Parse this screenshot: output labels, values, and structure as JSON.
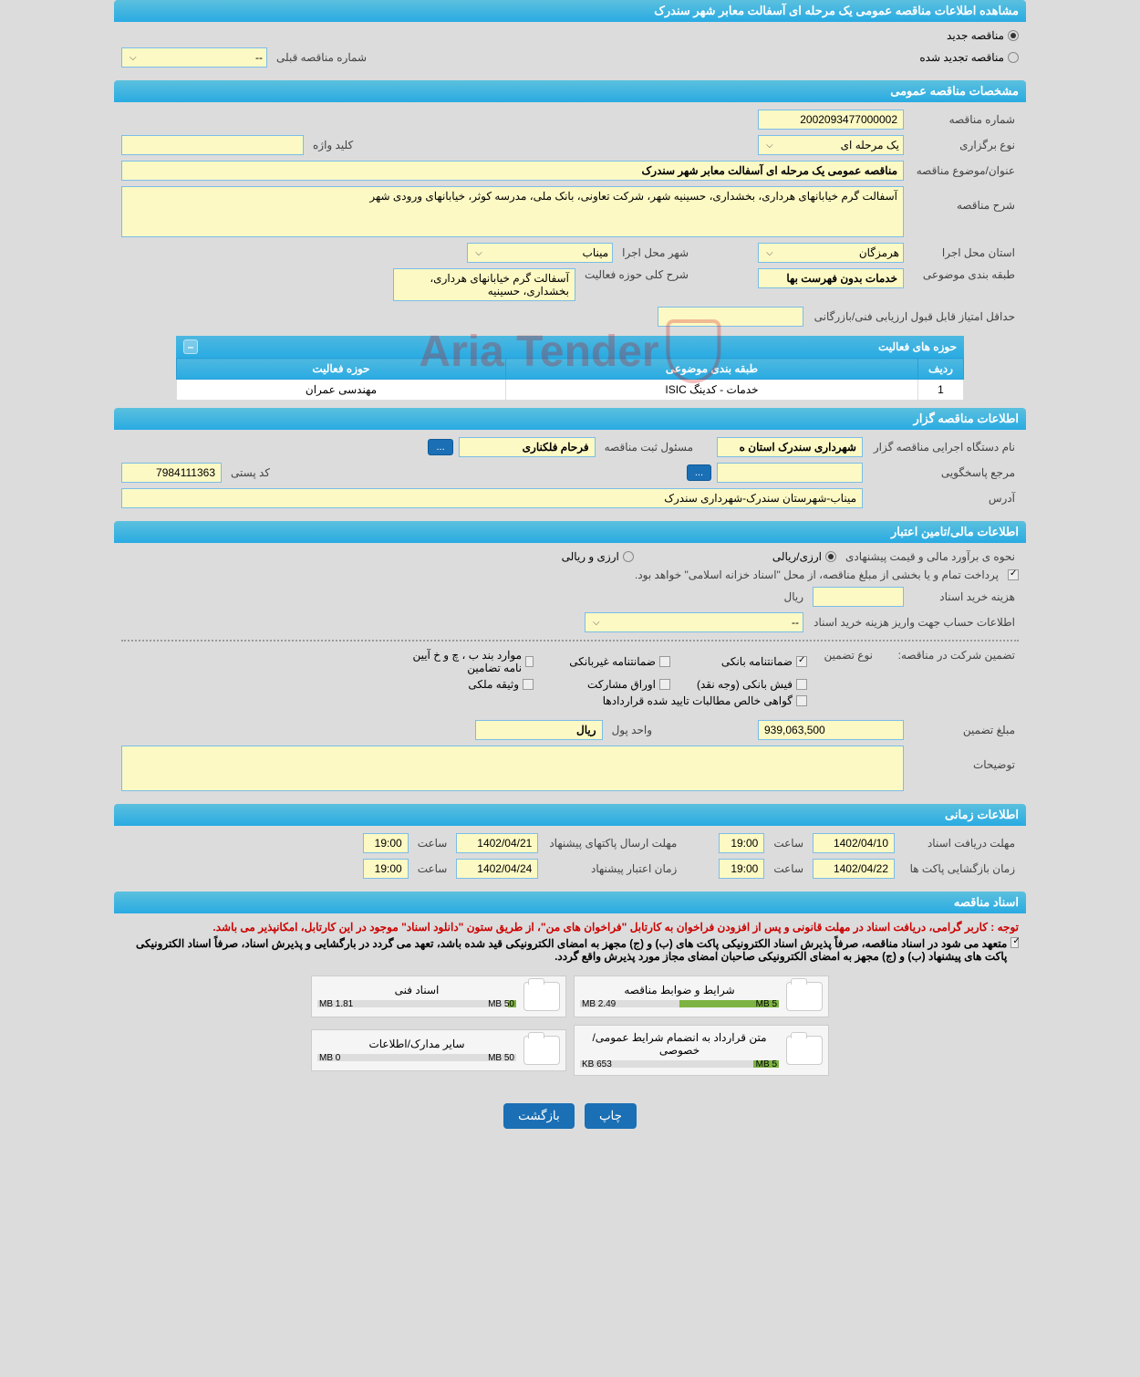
{
  "page_title": "مشاهده اطلاعات مناقصه عمومی یک مرحله ای آسفالت معابر شهر سندرک",
  "tender_status": {
    "new_label": "مناقصه جدید",
    "renewed_label": "مناقصه تجدید شده",
    "prev_number_label": "شماره مناقصه قبلی",
    "prev_number_value": "--"
  },
  "sections": {
    "general": "مشخصات مناقصه عمومی",
    "organizer": "اطلاعات مناقصه گزار",
    "financial": "اطلاعات مالی/تامین اعتبار",
    "timing": "اطلاعات زمانی",
    "documents": "اسناد مناقصه"
  },
  "general": {
    "tender_number_label": "شماره مناقصه",
    "tender_number": "2002093477000002",
    "keyword_label": "کلید واژه",
    "keyword": "",
    "type_label": "نوع برگزاری",
    "type": "یک مرحله ای",
    "subject_label": "عنوان/موضوع مناقصه",
    "subject": "مناقصه عمومی یک مرحله ای آسفالت معابر شهر سندرک",
    "description_label": "شرح مناقصه",
    "description": "آسفالت گرم خیابانهای هرداری، بخشداری، حسینیه شهر، شرکت تعاونی، بانک ملی، مدرسه کوثر، خیابانهای ورودی شهر",
    "province_label": "استان محل اجرا",
    "province": "هرمزگان",
    "city_label": "شهر محل اجرا",
    "city": "میناب",
    "category_label": "طبقه بندی موضوعی",
    "category": "خدمات بدون فهرست بها",
    "activity_label": "شرح کلی حوزه فعالیت",
    "activity": "آسفالت گرم خیابانهای هرداری، بخشداری، حسینیه",
    "min_score_label": "حداقل امتیاز قابل قبول ارزیابی فنی/بازرگانی",
    "min_score": ""
  },
  "activity_table": {
    "title": "حوزه های فعالیت",
    "headers": [
      "ردیف",
      "طبقه بندی موضوعی",
      "حوزه فعالیت"
    ],
    "rows": [
      [
        "1",
        "خدمات - کدینگ ISIC",
        "مهندسی عمران"
      ]
    ]
  },
  "organizer": {
    "name_label": "نام دستگاه اجرایی مناقصه گزار",
    "name": "شهرداری سندرک استان ه",
    "responsible_label": "مسئول ثبت مناقصه",
    "responsible": "فرحام فلکناری",
    "more_btn": "...",
    "contact_label": "مرجع پاسخگویی",
    "contact": "",
    "contact_btn": "...",
    "postal_label": "کد پستی",
    "postal": "7984111363",
    "address_label": "آدرس",
    "address": "میناب-شهرستان سندرک-شهرداری سندرک"
  },
  "financial": {
    "method_label": "نحوه ی برآورد مالی و قیمت پیشنهادی",
    "currency_rial": "ارزی/ریالی",
    "currency_both": "ارزی و ریالی",
    "payment_note": "پرداخت تمام و یا بخشی از مبلغ مناقصه، از محل \"اسناد خزانه اسلامی\" خواهد بود.",
    "doc_cost_label": "هزینه خرید اسناد",
    "doc_cost": "",
    "doc_cost_unit": "ریال",
    "account_label": "اطلاعات حساب جهت واریز هزینه خرید اسناد",
    "account": "--"
  },
  "guarantee": {
    "participate_label": "تضمین شرکت در مناقصه:",
    "type_label": "نوع تضمین",
    "types": {
      "bank": "ضمانتنامه بانکی",
      "nonbank": "ضمانتنامه غیربانکی",
      "cases": "موارد بند ب ، چ و خ آیین نامه تضامین",
      "cash": "فیش بانکی (وجه نقد)",
      "securities": "اوراق مشارکت",
      "property": "وثیقه ملکی",
      "cert": "گواهی خالص مطالبات تایید شده قراردادها"
    },
    "amount_label": "مبلغ تضمین",
    "amount": "939,063,500",
    "unit_label": "واحد پول",
    "unit": "ریال",
    "notes_label": "توضیحات",
    "notes": ""
  },
  "timing": {
    "receive_label": "مهلت دریافت اسناد",
    "receive_date": "1402/04/10",
    "receive_time": "19:00",
    "submit_label": "مهلت ارسال پاکتهای پیشنهاد",
    "submit_date": "1402/04/21",
    "submit_time": "19:00",
    "open_label": "زمان بازگشایی پاکت ها",
    "open_date": "1402/04/22",
    "open_time": "19:00",
    "validity_label": "زمان اعتبار پیشنهاد",
    "validity_date": "1402/04/24",
    "validity_time": "19:00",
    "time_label": "ساعت"
  },
  "documents": {
    "notice1": "توجه : کاربر گرامی، دریافت اسناد در مهلت قانونی و پس از افزودن فراخوان به کارتابل \"فراخوان های من\"، از طریق ستون \"دانلود اسناد\" موجود در این کارتابل، امکانپذیر می باشد.",
    "notice2": "متعهد می شود در اسناد مناقصه، صرفاً پذیرش اسناد الکترونیکی پاکت های (ب) و (ج) مجهز به امضای الکترونیکی قید شده باشد، تعهد می گردد در بارگشایی و پذیرش اسناد، صرفاً اسناد الکترونیکی پاکت های پیشنهاد (ب) و (ج) مجهز به امضای الکترونیکی صاحبان امضای مجاز مورد پذیرش واقع گردد.",
    "files": [
      {
        "title": "شرایط و ضوابط مناقصه",
        "size": "2.49 MB",
        "max": "5 MB",
        "fill_pct": 50
      },
      {
        "title": "اسناد فنی",
        "size": "1.81 MB",
        "max": "50 MB",
        "fill_pct": 4
      },
      {
        "title": "متن قرارداد به انضمام شرایط عمومی/خصوصی",
        "size": "653 KB",
        "max": "5 MB",
        "fill_pct": 13
      },
      {
        "title": "سایر مدارک/اطلاعات",
        "size": "0 MB",
        "max": "50 MB",
        "fill_pct": 0
      }
    ]
  },
  "buttons": {
    "print": "چاپ",
    "back": "بازگشت"
  },
  "watermark": "Aria Tender",
  "colors": {
    "header_bg": "#29abe2",
    "field_bg": "#fdf9c4",
    "field_border": "#7bbde8",
    "btn_bg": "#1a6fb5"
  }
}
